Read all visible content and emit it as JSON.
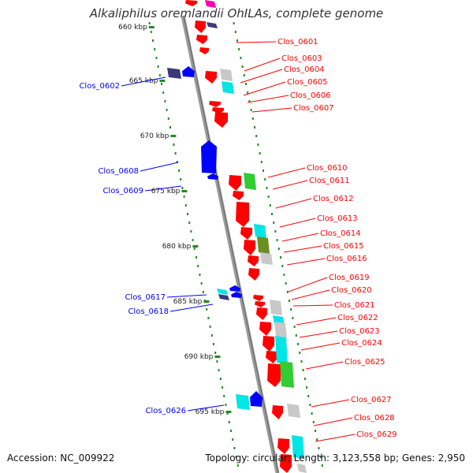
{
  "title": "Alkaliphilus oremlandii OhILAs, complete genome",
  "accession": "Accession: NC_009922",
  "summary": "Topology: circular; Length: 3,123,558 bp; Genes: 2,950",
  "colors": {
    "forward": "#ff0000",
    "reverse": "#0000ff",
    "reverse_dark": "#3a3a7a",
    "cyan": "#00e5e5",
    "green": "#33cc33",
    "olive": "#6b8e23",
    "gray": "#c8c8c8",
    "magenta": "#ff00aa",
    "backbone": "#999999",
    "ticks": "#228b22"
  },
  "ruler": [
    "660 kbp",
    "665 kbp",
    "670 kbp",
    "675 kbp",
    "680 kbp",
    "685 kbp",
    "690 kbp",
    "695 kbp"
  ],
  "reverse_labels": [
    "Clos_0602",
    "Clos_0608",
    "Clos_0609",
    "Clos_0617",
    "Clos_0618",
    "Clos_0626"
  ],
  "forward_labels": [
    "Clos_0601",
    "Clos_0603",
    "Clos_0604",
    "Clos_0605",
    "Clos_0606",
    "Clos_0607",
    "Clos_0610",
    "Clos_0611",
    "Clos_0612",
    "Clos_0613",
    "Clos_0614",
    "Clos_0615",
    "Clos_0616",
    "Clos_0619",
    "Clos_0620",
    "Clos_0621",
    "Clos_0622",
    "Clos_0623",
    "Clos_0624",
    "Clos_0625",
    "Clos_0627",
    "Clos_0628",
    "Clos_0629"
  ]
}
